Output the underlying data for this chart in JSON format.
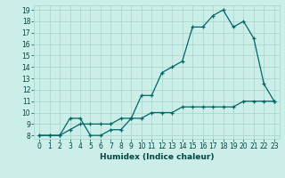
{
  "xlabel": "Humidex (Indice chaleur)",
  "bg_color": "#cceee8",
  "grid_color": "#aad8d0",
  "line_color": "#006666",
  "xlim": [
    -0.5,
    23.5
  ],
  "ylim": [
    7.7,
    19.4
  ],
  "xticks": [
    0,
    1,
    2,
    3,
    4,
    5,
    6,
    7,
    8,
    9,
    10,
    11,
    12,
    13,
    14,
    15,
    16,
    17,
    18,
    19,
    20,
    21,
    22,
    23
  ],
  "yticks": [
    8,
    9,
    10,
    11,
    12,
    13,
    14,
    15,
    16,
    17,
    18,
    19
  ],
  "line1_x": [
    0,
    1,
    2,
    3,
    4,
    5,
    6,
    7,
    8,
    9,
    10,
    11,
    12,
    13,
    14,
    15,
    16,
    17,
    18,
    19,
    20,
    21,
    22,
    23
  ],
  "line1_y": [
    8.0,
    8.0,
    8.0,
    9.5,
    9.5,
    8.0,
    8.0,
    8.5,
    8.5,
    9.5,
    11.5,
    11.5,
    13.5,
    14.0,
    14.5,
    17.5,
    17.5,
    18.5,
    19.0,
    17.5,
    18.0,
    16.5,
    12.5,
    11.0
  ],
  "line2_x": [
    0,
    1,
    2,
    3,
    4,
    5,
    6,
    7,
    8,
    9,
    10,
    11,
    12,
    13,
    14,
    15,
    16,
    17,
    18,
    19,
    20,
    21,
    22,
    23
  ],
  "line2_y": [
    8.0,
    8.0,
    8.0,
    8.5,
    9.0,
    9.0,
    9.0,
    9.0,
    9.5,
    9.5,
    9.5,
    10.0,
    10.0,
    10.0,
    10.5,
    10.5,
    10.5,
    10.5,
    10.5,
    10.5,
    11.0,
    11.0,
    11.0,
    11.0
  ],
  "tick_fontsize": 5.5,
  "xlabel_fontsize": 6.5
}
